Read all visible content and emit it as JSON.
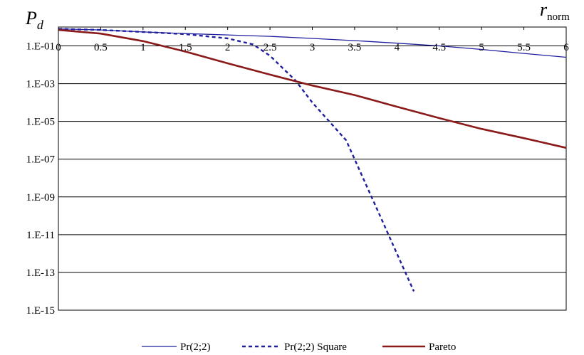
{
  "chart_data": {
    "type": "line",
    "title": "",
    "ylabel_main": "P",
    "ylabel_sub": "d",
    "xlabel_main": "r",
    "xlabel_sub": "norm",
    "xlim": [
      0,
      6
    ],
    "ylim": [
      1e-15,
      1
    ],
    "yscale": "log",
    "x_ticks": [
      "0",
      "0.5",
      "1",
      "1.5",
      "2",
      "2.5",
      "3",
      "3.5",
      "4",
      "4.5",
      "5",
      "5.5",
      "6"
    ],
    "y_ticks": [
      "1.E-01",
      "1.E-03",
      "1.E-05",
      "1.E-07",
      "1.E-09",
      "1.E-11",
      "1.E-13",
      "1.E-15"
    ],
    "grid": "horizontal",
    "legend_position": "bottom",
    "series": [
      {
        "name": "Pr(2;2)",
        "color": "#1f1f9e",
        "style": "solid",
        "x": [
          0,
          0.5,
          1,
          1.5,
          2,
          2.5,
          3,
          3.5,
          4,
          4.5,
          5,
          5.5,
          6
        ],
        "y": [
          0.8,
          0.7,
          0.55,
          0.45,
          0.38,
          0.32,
          0.25,
          0.19,
          0.14,
          0.1,
          0.065,
          0.04,
          0.025
        ]
      },
      {
        "name": "Pr(2;2) Square",
        "color": "#1f1f9e",
        "style": "dashed",
        "x": [
          0,
          0.5,
          1,
          1.5,
          2,
          2.3,
          2.5,
          2.8,
          3.0,
          3.2,
          3.4,
          3.5,
          3.6,
          3.8,
          4.0,
          4.2
        ],
        "y": [
          0.8,
          0.7,
          0.55,
          0.42,
          0.25,
          0.12,
          0.03,
          0.0015,
          0.0001,
          1e-05,
          1e-06,
          1e-07,
          1e-08,
          1e-10,
          1e-12,
          1e-14
        ]
      },
      {
        "name": "Pareto",
        "color": "#8b1a1a",
        "style": "solid",
        "x": [
          0,
          0.5,
          1,
          1.5,
          2,
          2.5,
          3,
          3.5,
          4,
          4.5,
          5,
          5.5,
          6
        ],
        "y": [
          0.7,
          0.45,
          0.18,
          0.05,
          0.012,
          0.003,
          0.0008,
          0.00025,
          6e-05,
          1.5e-05,
          4e-06,
          1.3e-06,
          4e-07
        ]
      }
    ]
  }
}
